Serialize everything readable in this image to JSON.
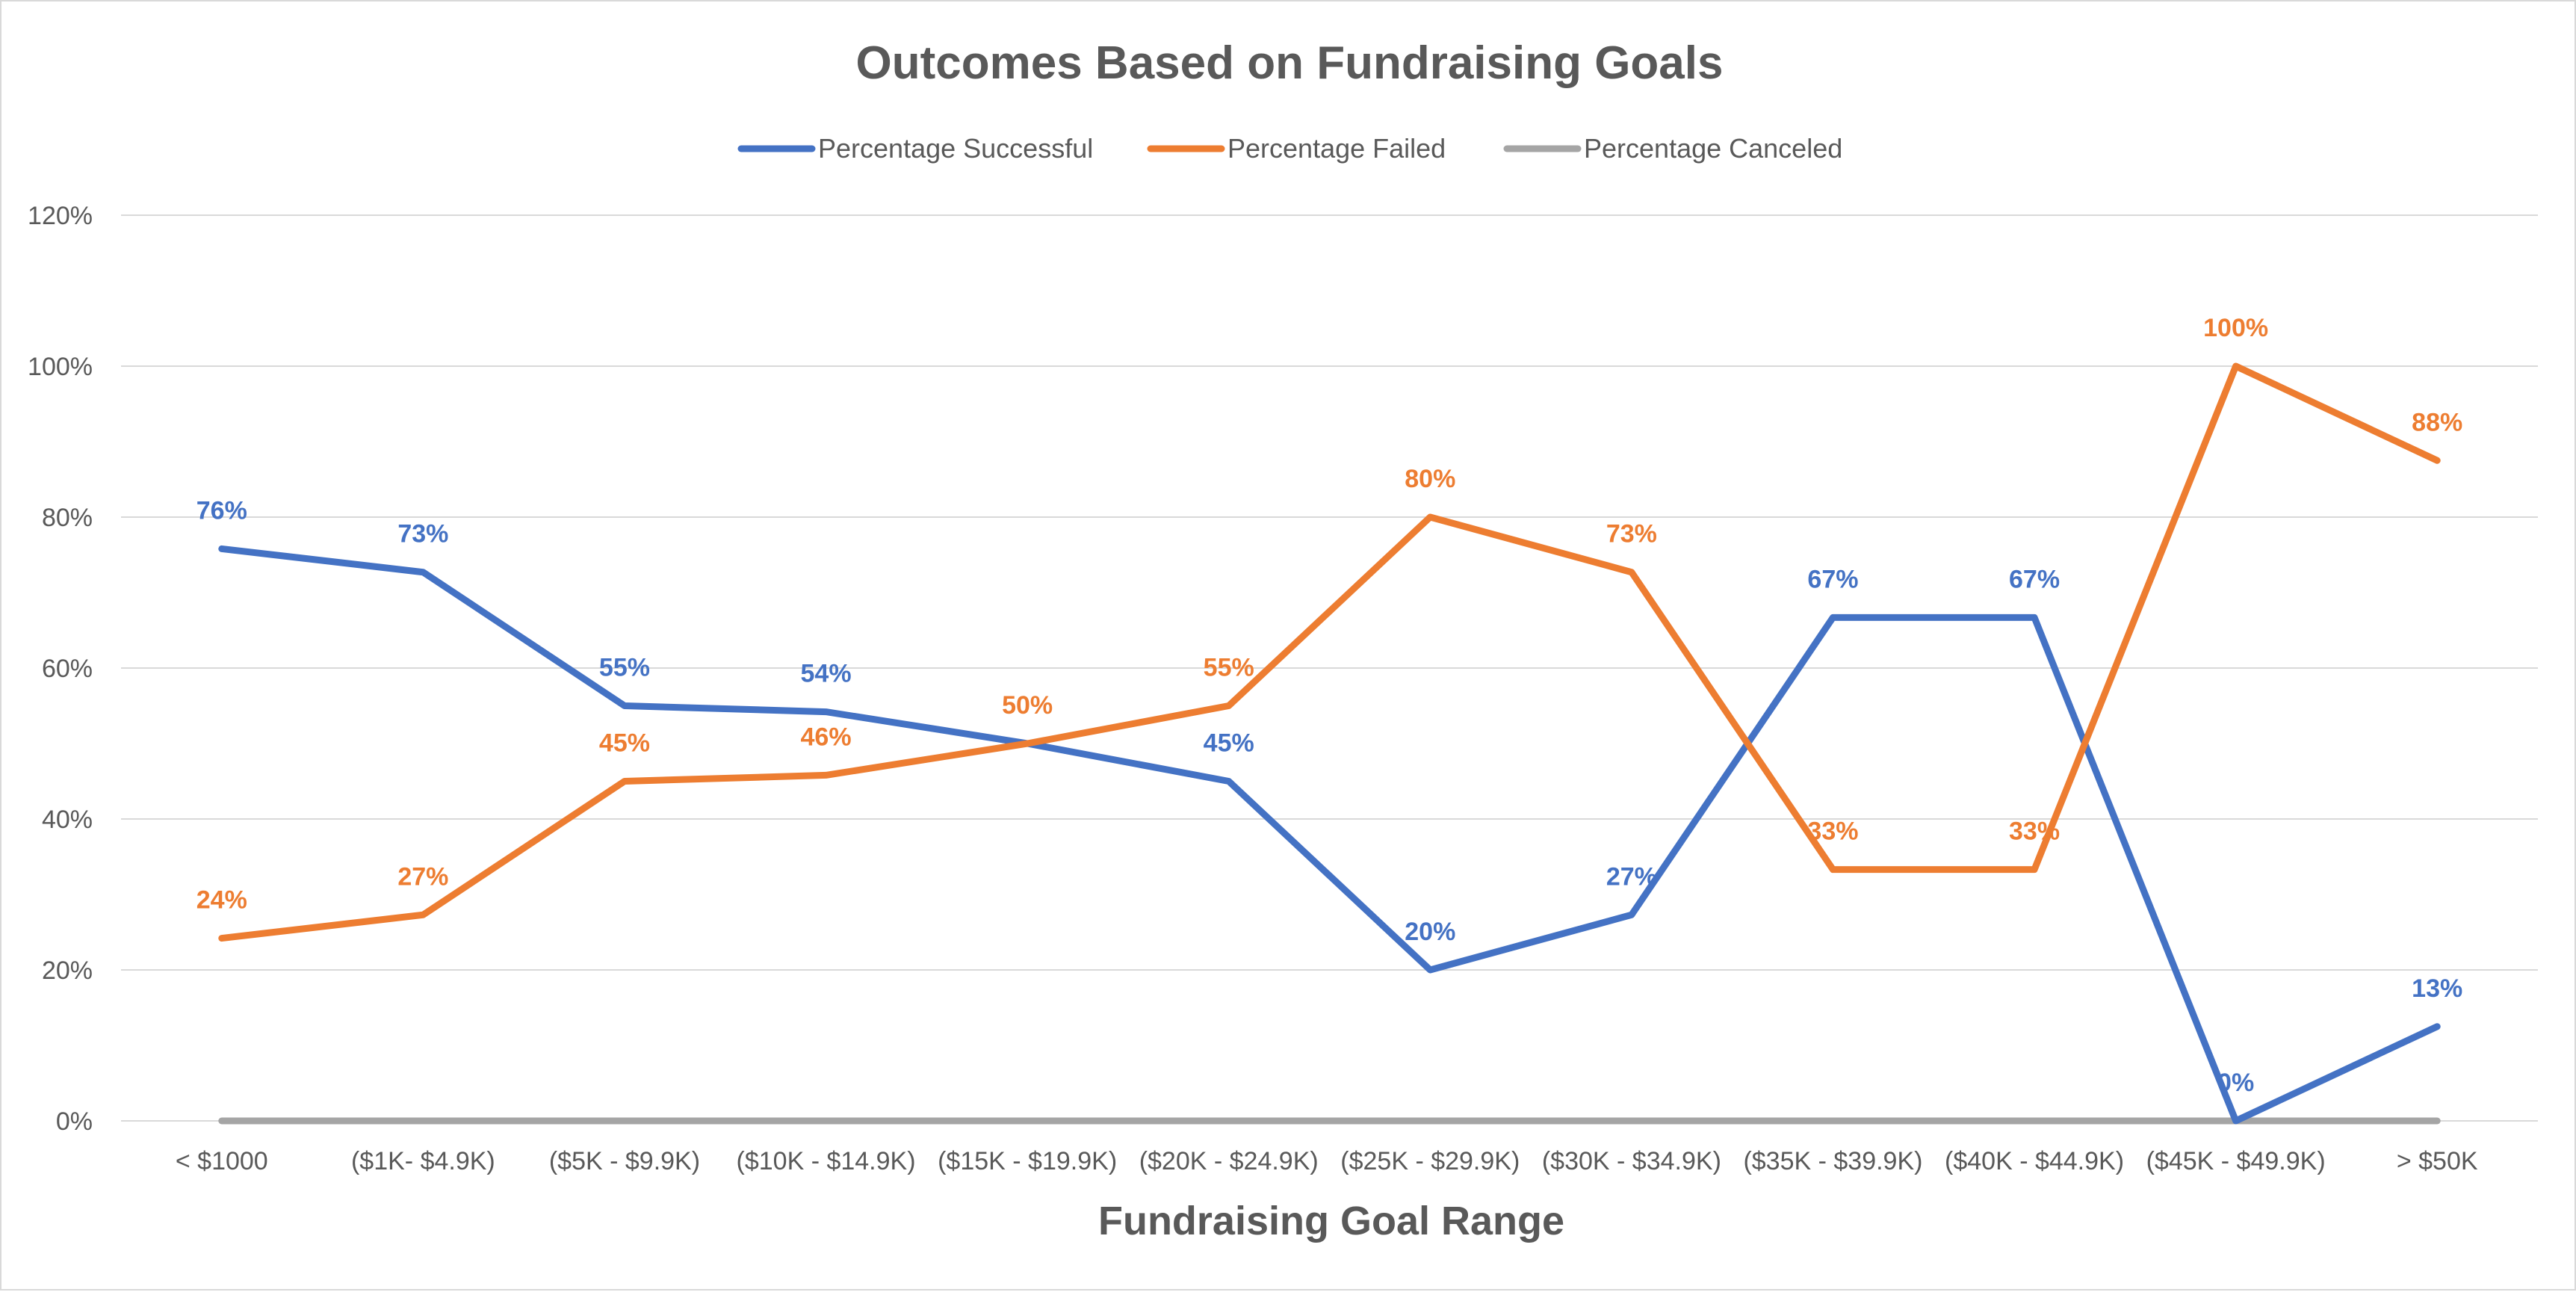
{
  "chart_data": {
    "type": "line",
    "title": "Outcomes Based on Fundraising Goals",
    "xlabel": "Fundraising Goal Range",
    "ylabel": "",
    "ylim": [
      0,
      120
    ],
    "yticks": [
      "0%",
      "20%",
      "40%",
      "60%",
      "80%",
      "100%",
      "120%"
    ],
    "ytick_values": [
      0,
      20,
      40,
      60,
      80,
      100,
      120
    ],
    "grid": true,
    "legend_position": "top",
    "categories": [
      "< $1000",
      "($1K- $4.9K)",
      "($5K - $9.9K)",
      "($10K - $14.9K)",
      "($15K - $19.9K)",
      "($20K - $24.9K)",
      "($25K - $29.9K)",
      "($30K - $34.9K)",
      "($35K - $39.9K)",
      "($40K - $44.9K)",
      "($45K - $49.9K)",
      "> $50K"
    ],
    "series": [
      {
        "name": "Percentage Successful",
        "color": "#4472c4",
        "values": [
          75.8,
          72.7,
          55,
          54.2,
          50,
          45,
          20,
          27.3,
          66.7,
          66.7,
          0,
          12.5
        ],
        "labels": [
          "76%",
          "73%",
          "55%",
          "54%",
          "",
          "45%",
          "20%",
          "27%",
          "67%",
          "67%",
          "0%",
          "13%"
        ]
      },
      {
        "name": "Percentage Failed",
        "color": "#ed7d31",
        "values": [
          24.2,
          27.3,
          45,
          45.8,
          50,
          55,
          80,
          72.7,
          33.3,
          33.3,
          100,
          87.5
        ],
        "labels": [
          "24%",
          "27%",
          "45%",
          "46%",
          "50%",
          "55%",
          "80%",
          "73%",
          "33%",
          "33%",
          "100%",
          "88%"
        ]
      },
      {
        "name": "Percentage Canceled",
        "color": "#a5a5a5",
        "values": [
          0,
          0,
          0,
          0,
          0,
          0,
          0,
          0,
          0,
          0,
          0,
          0
        ],
        "labels": []
      }
    ]
  },
  "styles": {
    "gridline_color": "#d9d9d9",
    "text_color": "#595959"
  }
}
